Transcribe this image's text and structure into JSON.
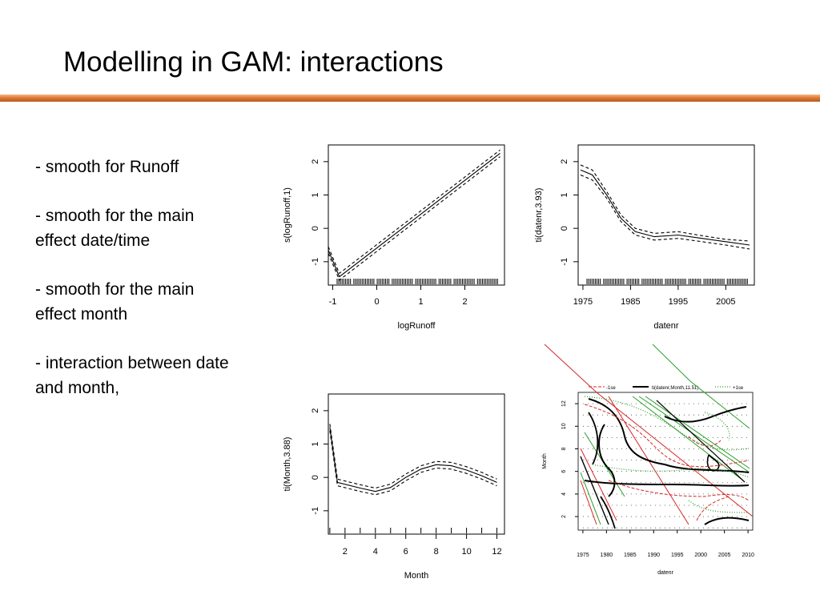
{
  "slide": {
    "title": "Modelling in GAM: interactions",
    "bullets": [
      "- smooth for Runoff",
      "- smooth for the main effect date/time",
      "- smooth for the main effect month",
      "- interaction between date and month,"
    ]
  },
  "colors": {
    "accent_rule": "#e07b34",
    "contour_main": "#000000",
    "contour_minus": "#d62728",
    "contour_plus": "#2ca02c"
  },
  "chart_data": [
    {
      "type": "line",
      "xlabel": "logRunoff",
      "ylabel": "s(logRunoff,1)",
      "xticks": [
        -1,
        0,
        1,
        2
      ],
      "yticks": [
        -1,
        0,
        1,
        2
      ],
      "xlim": [
        -1.1,
        2.9
      ],
      "ylim": [
        -1.7,
        2.5
      ],
      "rug": true,
      "series": [
        {
          "role": "fit",
          "style": "solid",
          "x": [
            -1.1,
            -0.85,
            2.8
          ],
          "y": [
            -0.65,
            -1.45,
            2.25
          ]
        },
        {
          "role": "se_upper",
          "style": "dashed",
          "x": [
            -1.1,
            -0.85,
            2.8
          ],
          "y": [
            -0.55,
            -1.35,
            2.35
          ]
        },
        {
          "role": "se_lower",
          "style": "dashed",
          "x": [
            -1.1,
            -0.85,
            2.8
          ],
          "y": [
            -0.75,
            -1.55,
            2.15
          ]
        }
      ]
    },
    {
      "type": "line",
      "xlabel": "datenr",
      "ylabel": "ti(datenr,3.93)",
      "xticks": [
        1975,
        1985,
        1995,
        2005
      ],
      "yticks": [
        -1,
        0,
        1,
        2
      ],
      "xlim": [
        1974,
        2011
      ],
      "ylim": [
        -1.7,
        2.5
      ],
      "rug": true,
      "series": [
        {
          "role": "fit",
          "style": "solid",
          "x": [
            1974.5,
            1977,
            1980,
            1983,
            1986,
            1990,
            1995,
            2000,
            2005,
            2010
          ],
          "y": [
            1.75,
            1.6,
            1.0,
            0.3,
            -0.1,
            -0.25,
            -0.2,
            -0.3,
            -0.4,
            -0.5
          ]
        },
        {
          "role": "se_upper",
          "style": "dashed",
          "x": [
            1974.5,
            1977,
            1980,
            1983,
            1986,
            1990,
            1995,
            2000,
            2005,
            2010
          ],
          "y": [
            1.9,
            1.75,
            1.1,
            0.4,
            0.0,
            -0.15,
            -0.1,
            -0.22,
            -0.33,
            -0.38
          ]
        },
        {
          "role": "se_lower",
          "style": "dashed",
          "x": [
            1974.5,
            1977,
            1980,
            1983,
            1986,
            1990,
            1995,
            2000,
            2005,
            2010
          ],
          "y": [
            1.6,
            1.45,
            0.9,
            0.2,
            -0.2,
            -0.35,
            -0.3,
            -0.4,
            -0.5,
            -0.62
          ]
        }
      ]
    },
    {
      "type": "line",
      "xlabel": "Month",
      "ylabel": "ti(Month,3.88)",
      "xticks": [
        2,
        4,
        6,
        8,
        10,
        12
      ],
      "yticks": [
        -1,
        0,
        1,
        2
      ],
      "xlim": [
        0.9,
        12.5
      ],
      "ylim": [
        -1.7,
        2.5
      ],
      "rug": true,
      "series": [
        {
          "role": "fit",
          "style": "solid",
          "x": [
            1,
            1.5,
            3,
            4,
            5,
            6,
            7,
            8,
            9,
            10,
            11,
            12
          ],
          "y": [
            1.5,
            -0.15,
            -0.32,
            -0.42,
            -0.3,
            0.0,
            0.25,
            0.38,
            0.35,
            0.22,
            0.05,
            -0.15
          ]
        },
        {
          "role": "se_upper",
          "style": "dashed",
          "x": [
            1,
            1.5,
            3,
            4,
            5,
            6,
            7,
            8,
            9,
            10,
            11,
            12
          ],
          "y": [
            1.6,
            -0.05,
            -0.22,
            -0.32,
            -0.2,
            0.1,
            0.35,
            0.48,
            0.45,
            0.32,
            0.15,
            -0.05
          ]
        },
        {
          "role": "se_lower",
          "style": "dashed",
          "x": [
            1,
            1.5,
            3,
            4,
            5,
            6,
            7,
            8,
            9,
            10,
            11,
            12
          ],
          "y": [
            1.4,
            -0.25,
            -0.42,
            -0.52,
            -0.4,
            -0.1,
            0.15,
            0.28,
            0.25,
            0.12,
            -0.05,
            -0.25
          ]
        }
      ]
    },
    {
      "type": "contour",
      "xlabel": "datenr",
      "ylabel": "Month",
      "xticks": [
        1975,
        1980,
        1985,
        1990,
        1995,
        2000,
        2005,
        2010
      ],
      "yticks": [
        2,
        4,
        6,
        8,
        10,
        12
      ],
      "xlim": [
        1974,
        2011
      ],
      "ylim": [
        0.8,
        13.0
      ],
      "legend": {
        "position": "top",
        "entries": [
          "-1se",
          "ti(datenr,Month,11.51)",
          "+1se"
        ]
      }
    }
  ]
}
